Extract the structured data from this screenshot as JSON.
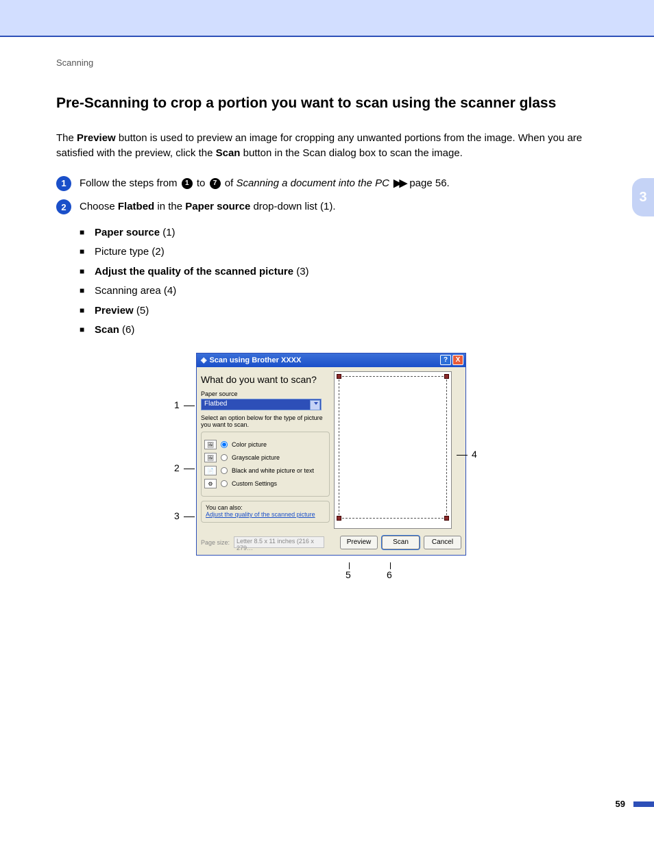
{
  "breadcrumb": "Scanning",
  "heading": "Pre-Scanning to crop a portion you want to scan using the scanner glass",
  "intro": {
    "t1": "The ",
    "b1": "Preview",
    "t2": " button is used to preview an image for cropping any unwanted portions from the image. When you are satisfied with the preview, click the ",
    "b2": "Scan",
    "t3": " button in the Scan dialog box to scan the image."
  },
  "step1": {
    "num": "1",
    "t1": "Follow the steps from ",
    "c1": "1",
    "t2": " to ",
    "c2": "7",
    "t3": " of ",
    "ital": "Scanning a document into the PC",
    "arrows": "▶▶",
    "t4": " page 56."
  },
  "step2": {
    "num": "2",
    "t1": "Choose ",
    "b1": "Flatbed",
    "t2": " in the ",
    "b2": "Paper source",
    "t3": " drop-down list (1)."
  },
  "bullets": [
    {
      "bold": "Paper source",
      "rest": " (1)"
    },
    {
      "bold": "",
      "rest": "Picture type (2)"
    },
    {
      "bold": "Adjust the quality of the scanned picture",
      "rest": " (3)"
    },
    {
      "bold": "",
      "rest": "Scanning area (4)"
    },
    {
      "bold": "Preview",
      "rest": " (5)"
    },
    {
      "bold": "Scan",
      "rest": " (6)"
    }
  ],
  "chapter": "3",
  "page_num": "59",
  "dialog": {
    "title": "Scan using Brother  XXXX",
    "question": "What do you want to scan?",
    "paper_source_label": "Paper source",
    "paper_source_value": "Flatbed",
    "hint": "Select an option below for the type of picture you want to scan.",
    "options": [
      {
        "label": "Color picture",
        "checked": true
      },
      {
        "label": "Grayscale picture",
        "checked": false
      },
      {
        "label": "Black and white picture or text",
        "checked": false
      },
      {
        "label": "Custom Settings",
        "checked": false
      }
    ],
    "also_label": "You can also:",
    "adjust_link": "Adjust the quality of the scanned picture",
    "page_size_label": "Page size:",
    "page_size_value": "Letter 8.5 x 11 inches (216 x 279…",
    "btn_preview": "Preview",
    "btn_scan": "Scan",
    "btn_cancel": "Cancel"
  },
  "callouts": {
    "c1": "1",
    "c2": "2",
    "c3": "3",
    "c4": "4",
    "c5": "5",
    "c6": "6"
  },
  "colors": {
    "header_bg": "#d2deff",
    "accent": "#2d4fb8",
    "step_circle": "#1a4fc9",
    "dialog_bg": "#ece9d8",
    "titlebar_start": "#3a6fd8",
    "titlebar_end": "#1a4fc9",
    "close_btn": "#e85c3a",
    "crop_handle": "#8b2a2a"
  }
}
